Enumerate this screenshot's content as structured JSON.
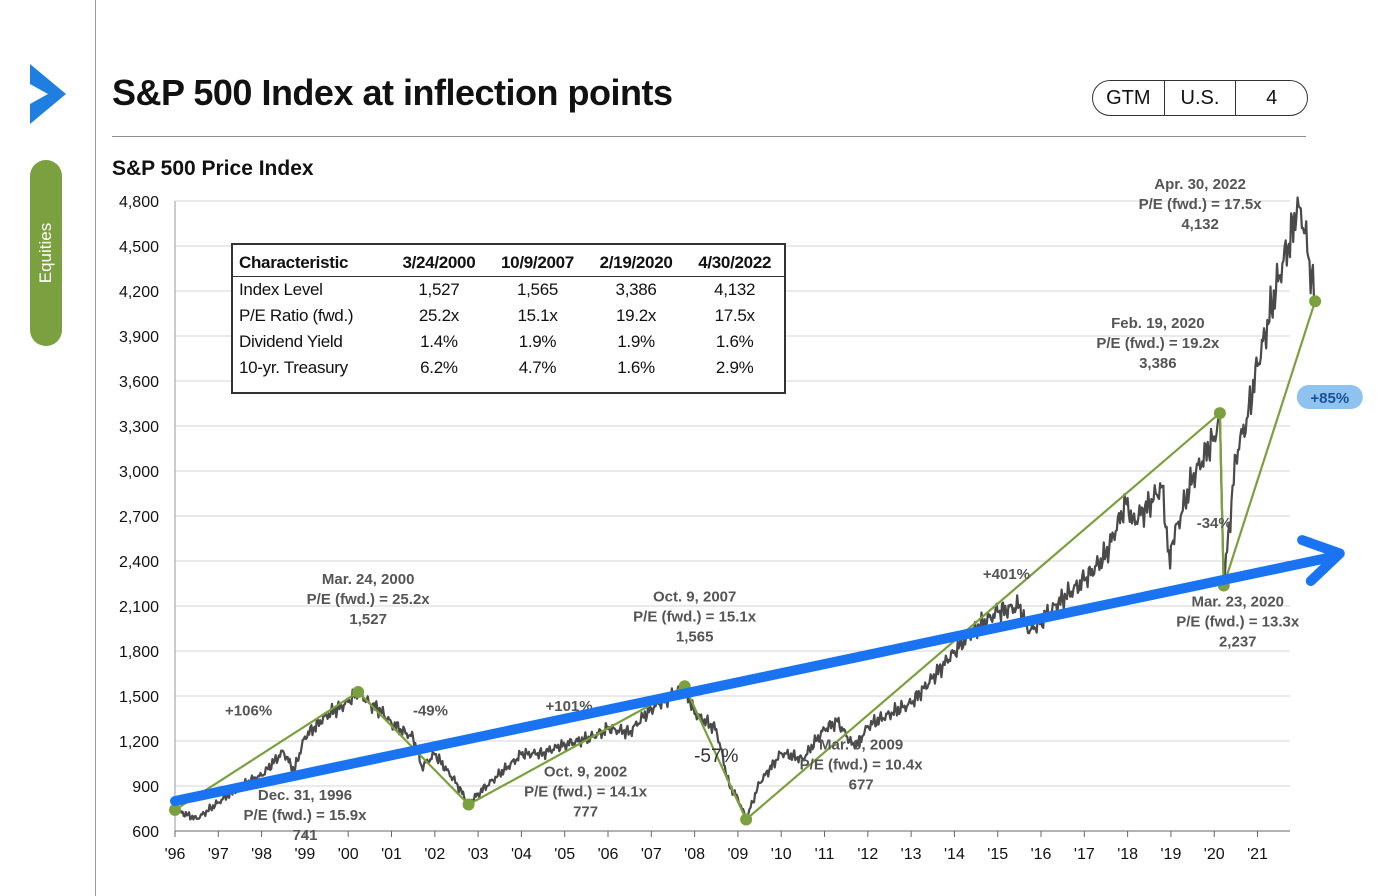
{
  "header": {
    "title": "S&P 500 Index at inflection points",
    "tags": [
      "GTM",
      "U.S.",
      "4"
    ]
  },
  "sidebar": {
    "section_label": "Equities"
  },
  "colors": {
    "price_line": "#4a4a4a",
    "trend_line": "#7ba03f",
    "overlay_arrow": "#1a73f0",
    "pill_bg": "#7ba03f"
  },
  "table": {
    "headers": [
      "Characteristic",
      "3/24/2000",
      "10/9/2007",
      "2/19/2020",
      "4/30/2022"
    ],
    "rows": [
      [
        "Index Level",
        "1,527",
        "1,565",
        "3,386",
        "4,132"
      ],
      [
        "P/E Ratio (fwd.)",
        "25.2x",
        "15.1x",
        "19.2x",
        "17.5x"
      ],
      [
        "Dividend Yield",
        "1.4%",
        "1.9%",
        "1.9%",
        "1.6%"
      ],
      [
        "10-yr. Treasury",
        "6.2%",
        "4.7%",
        "1.6%",
        "2.9%"
      ]
    ]
  },
  "chart_data": {
    "type": "line",
    "title": "S&P 500 Price Index",
    "xlabel": "",
    "ylabel": "",
    "ylim": [
      600,
      4800
    ],
    "y_ticks": [
      600,
      900,
      1200,
      1500,
      1800,
      2100,
      2400,
      2700,
      3000,
      3300,
      3600,
      3900,
      4200,
      4500,
      4800
    ],
    "y_tick_labels": [
      "600",
      "900",
      "1,200",
      "1,500",
      "1,800",
      "2,100",
      "2,400",
      "2,700",
      "3,000",
      "3,300",
      "3,600",
      "3,900",
      "4,200",
      "4,500",
      "4,800"
    ],
    "x_ticks": [
      1996,
      1997,
      1998,
      1999,
      2000,
      2001,
      2002,
      2003,
      2004,
      2005,
      2006,
      2007,
      2008,
      2009,
      2010,
      2011,
      2012,
      2013,
      2014,
      2015,
      2016,
      2017,
      2018,
      2019,
      2020,
      2021
    ],
    "x_tick_labels": [
      "'96",
      "'97",
      "'98",
      "'99",
      "'00",
      "'01",
      "'02",
      "'03",
      "'04",
      "'05",
      "'06",
      "'07",
      "'08",
      "'09",
      "'10",
      "'11",
      "'12",
      "'13",
      "'14",
      "'15",
      "'16",
      "'17",
      "'18",
      "'19",
      "'20",
      "'21"
    ],
    "grid": true,
    "series": [
      {
        "role": "price",
        "x": [
          1996.0,
          1996.5,
          1997.0,
          1997.5,
          1998.0,
          1998.5,
          1998.75,
          1999.0,
          1999.5,
          2000.0,
          2000.23,
          2000.5,
          2000.75,
          2001.0,
          2001.5,
          2001.7,
          2002.0,
          2002.5,
          2002.78,
          2003.0,
          2003.5,
          2004.0,
          2004.5,
          2005.0,
          2005.5,
          2006.0,
          2006.5,
          2007.0,
          2007.5,
          2007.77,
          2008.0,
          2008.5,
          2008.8,
          2009.0,
          2009.19,
          2009.5,
          2010.0,
          2010.5,
          2011.0,
          2011.3,
          2011.7,
          2012.0,
          2012.5,
          2013.0,
          2013.5,
          2014.0,
          2014.5,
          2015.0,
          2015.5,
          2015.7,
          2016.0,
          2016.5,
          2017.0,
          2017.5,
          2018.0,
          2018.1,
          2018.5,
          2018.8,
          2018.98,
          2019.0,
          2019.5,
          2020.0,
          2020.13,
          2020.22,
          2020.5,
          2020.75,
          2021.0,
          2021.5,
          2021.9,
          2022.0,
          2022.2,
          2022.33
        ],
        "values": [
          741,
          680,
          790,
          900,
          970,
          1130,
          1000,
          1230,
          1370,
          1460,
          1527,
          1450,
          1400,
          1320,
          1220,
          1030,
          1110,
          920,
          777,
          850,
          980,
          1110,
          1120,
          1180,
          1210,
          1280,
          1260,
          1420,
          1500,
          1565,
          1380,
          1280,
          900,
          820,
          677,
          920,
          1120,
          1080,
          1280,
          1330,
          1150,
          1300,
          1380,
          1450,
          1620,
          1800,
          1950,
          2060,
          2100,
          1920,
          2000,
          2150,
          2270,
          2440,
          2820,
          2650,
          2780,
          2900,
          2350,
          2500,
          2950,
          3230,
          3386,
          2237,
          3100,
          3350,
          3700,
          4300,
          4700,
          4750,
          4400,
          4132
        ]
      },
      {
        "role": "trend",
        "x": [
          1996.0,
          2000.23,
          2002.78,
          2007.77,
          2009.19,
          2020.13,
          2020.22,
          2022.33
        ],
        "values": [
          741,
          1527,
          777,
          1565,
          677,
          3386,
          2237,
          4132
        ]
      }
    ],
    "points": [
      {
        "x": 1996.0,
        "y": 741,
        "date": "Dec. 31, 1996",
        "pe": "P/E (fwd.) = 15.9x",
        "level": "741"
      },
      {
        "x": 2000.23,
        "y": 1527,
        "date": "Mar. 24, 2000",
        "pe": "P/E (fwd.) = 25.2x",
        "level": "1,527"
      },
      {
        "x": 2002.78,
        "y": 777,
        "date": "Oct. 9, 2002",
        "pe": "P/E (fwd.) = 14.1x",
        "level": "777"
      },
      {
        "x": 2007.77,
        "y": 1565,
        "date": "Oct. 9, 2007",
        "pe": "P/E (fwd.) = 15.1x",
        "level": "1,565"
      },
      {
        "x": 2009.19,
        "y": 677,
        "date": "Mar. 9, 2009",
        "pe": "P/E (fwd.) = 10.4x",
        "level": "677"
      },
      {
        "x": 2020.13,
        "y": 3386,
        "date": "Feb. 19, 2020",
        "pe": "P/E (fwd.) = 19.2x",
        "level": "3,386"
      },
      {
        "x": 2020.22,
        "y": 2237,
        "date": "Mar. 23, 2020",
        "pe": "P/E (fwd.) = 13.3x",
        "level": "2,237"
      },
      {
        "x": 2022.33,
        "y": 4132,
        "date": "Apr. 30, 2022",
        "pe": "P/E (fwd.) = 17.5x",
        "level": "4,132"
      }
    ],
    "changes": [
      {
        "label": "+106%",
        "x": 1997.7,
        "y": 1370
      },
      {
        "label": "-49%",
        "x": 2001.9,
        "y": 1370
      },
      {
        "label": "+101%",
        "x": 2005.1,
        "y": 1400
      },
      {
        "label": "-57%",
        "x": 2008.5,
        "y": 1060
      },
      {
        "label": "+401%",
        "x": 2015.2,
        "y": 2280
      },
      {
        "label": "-34%",
        "x": 2020.0,
        "y": 2620
      },
      {
        "label": "+85%",
        "x": 2022.6,
        "y": 3480,
        "highlight": true
      }
    ],
    "overlay_arrow": {
      "from": [
        1996.0,
        800
      ],
      "to": [
        2022.9,
        2450
      ]
    }
  }
}
